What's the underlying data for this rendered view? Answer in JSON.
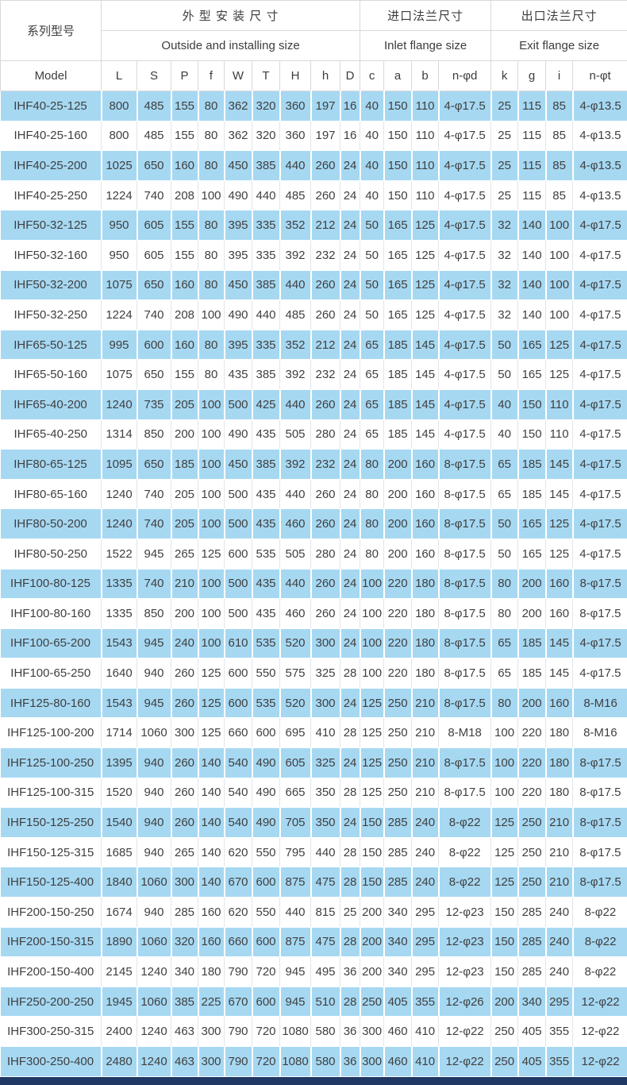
{
  "colors": {
    "row_blue": "#a6d8f2",
    "row_white": "#ffffff",
    "header_border": "#d9d9d9",
    "text": "#3f3f3f",
    "bottom_bar": "#1f3864"
  },
  "table": {
    "header": {
      "model_zh": "系列型号",
      "model_en": "Model",
      "groups": [
        {
          "zh": "外 型 安 装 尺 寸",
          "en": "Outside and installing size",
          "cols": [
            "L",
            "S",
            "P",
            "f",
            "W",
            "T",
            "H",
            "h",
            "D"
          ]
        },
        {
          "zh": "进口法兰尺寸",
          "en": "Inlet flange size",
          "cols": [
            "c",
            "a",
            "b",
            "n-φd"
          ]
        },
        {
          "zh": "出口法兰尺寸",
          "en": "Exit flange size",
          "cols": [
            "k",
            "g",
            "i",
            "n-φt"
          ]
        }
      ]
    },
    "rows": [
      {
        "model": "IHF40-25-125",
        "values": [
          "800",
          "485",
          "155",
          "80",
          "362",
          "320",
          "360",
          "197",
          "16",
          "40",
          "150",
          "110",
          "4-φ17.5",
          "25",
          "115",
          "85",
          "4-φ13.5"
        ]
      },
      {
        "model": "IHF40-25-160",
        "values": [
          "800",
          "485",
          "155",
          "80",
          "362",
          "320",
          "360",
          "197",
          "16",
          "40",
          "150",
          "110",
          "4-φ17.5",
          "25",
          "115",
          "85",
          "4-φ13.5"
        ]
      },
      {
        "model": "IHF40-25-200",
        "values": [
          "1025",
          "650",
          "160",
          "80",
          "450",
          "385",
          "440",
          "260",
          "24",
          "40",
          "150",
          "110",
          "4-φ17.5",
          "25",
          "115",
          "85",
          "4-φ13.5"
        ]
      },
      {
        "model": "IHF40-25-250",
        "values": [
          "1224",
          "740",
          "208",
          "100",
          "490",
          "440",
          "485",
          "260",
          "24",
          "40",
          "150",
          "110",
          "4-φ17.5",
          "25",
          "115",
          "85",
          "4-φ13.5"
        ]
      },
      {
        "model": "IHF50-32-125",
        "values": [
          "950",
          "605",
          "155",
          "80",
          "395",
          "335",
          "352",
          "212",
          "24",
          "50",
          "165",
          "125",
          "4-φ17.5",
          "32",
          "140",
          "100",
          "4-φ17.5"
        ]
      },
      {
        "model": "IHF50-32-160",
        "values": [
          "950",
          "605",
          "155",
          "80",
          "395",
          "335",
          "392",
          "232",
          "24",
          "50",
          "165",
          "125",
          "4-φ17.5",
          "32",
          "140",
          "100",
          "4-φ17.5"
        ]
      },
      {
        "model": "IHF50-32-200",
        "values": [
          "1075",
          "650",
          "160",
          "80",
          "450",
          "385",
          "440",
          "260",
          "24",
          "50",
          "165",
          "125",
          "4-φ17.5",
          "32",
          "140",
          "100",
          "4-φ17.5"
        ]
      },
      {
        "model": "IHF50-32-250",
        "values": [
          "1224",
          "740",
          "208",
          "100",
          "490",
          "440",
          "485",
          "260",
          "24",
          "50",
          "165",
          "125",
          "4-φ17.5",
          "32",
          "140",
          "100",
          "4-φ17.5"
        ]
      },
      {
        "model": "IHF65-50-125",
        "values": [
          "995",
          "600",
          "160",
          "80",
          "395",
          "335",
          "352",
          "212",
          "24",
          "65",
          "185",
          "145",
          "4-φ17.5",
          "50",
          "165",
          "125",
          "4-φ17.5"
        ]
      },
      {
        "model": "IHF65-50-160",
        "values": [
          "1075",
          "650",
          "155",
          "80",
          "435",
          "385",
          "392",
          "232",
          "24",
          "65",
          "185",
          "145",
          "4-φ17.5",
          "50",
          "165",
          "125",
          "4-φ17.5"
        ]
      },
      {
        "model": "IHF65-40-200",
        "values": [
          "1240",
          "735",
          "205",
          "100",
          "500",
          "425",
          "440",
          "260",
          "24",
          "65",
          "185",
          "145",
          "4-φ17.5",
          "40",
          "150",
          "110",
          "4-φ17.5"
        ]
      },
      {
        "model": "IHF65-40-250",
        "values": [
          "1314",
          "850",
          "200",
          "100",
          "490",
          "435",
          "505",
          "280",
          "24",
          "65",
          "185",
          "145",
          "4-φ17.5",
          "40",
          "150",
          "110",
          "4-φ17.5"
        ]
      },
      {
        "model": "IHF80-65-125",
        "values": [
          "1095",
          "650",
          "185",
          "100",
          "450",
          "385",
          "392",
          "232",
          "24",
          "80",
          "200",
          "160",
          "8-φ17.5",
          "65",
          "185",
          "145",
          "4-φ17.5"
        ]
      },
      {
        "model": "IHF80-65-160",
        "values": [
          "1240",
          "740",
          "205",
          "100",
          "500",
          "435",
          "440",
          "260",
          "24",
          "80",
          "200",
          "160",
          "8-φ17.5",
          "65",
          "185",
          "145",
          "4-φ17.5"
        ]
      },
      {
        "model": "IHF80-50-200",
        "values": [
          "1240",
          "740",
          "205",
          "100",
          "500",
          "435",
          "460",
          "260",
          "24",
          "80",
          "200",
          "160",
          "8-φ17.5",
          "50",
          "165",
          "125",
          "4-φ17.5"
        ]
      },
      {
        "model": "IHF80-50-250",
        "values": [
          "1522",
          "945",
          "265",
          "125",
          "600",
          "535",
          "505",
          "280",
          "24",
          "80",
          "200",
          "160",
          "8-φ17.5",
          "50",
          "165",
          "125",
          "4-φ17.5"
        ]
      },
      {
        "model": "IHF100-80-125",
        "values": [
          "1335",
          "740",
          "210",
          "100",
          "500",
          "435",
          "440",
          "260",
          "24",
          "100",
          "220",
          "180",
          "8-φ17.5",
          "80",
          "200",
          "160",
          "8-φ17.5"
        ]
      },
      {
        "model": "IHF100-80-160",
        "values": [
          "1335",
          "850",
          "200",
          "100",
          "500",
          "435",
          "460",
          "260",
          "24",
          "100",
          "220",
          "180",
          "8-φ17.5",
          "80",
          "200",
          "160",
          "8-φ17.5"
        ]
      },
      {
        "model": "IHF100-65-200",
        "values": [
          "1543",
          "945",
          "240",
          "100",
          "610",
          "535",
          "520",
          "300",
          "24",
          "100",
          "220",
          "180",
          "8-φ17.5",
          "65",
          "185",
          "145",
          "4-φ17.5"
        ]
      },
      {
        "model": "IHF100-65-250",
        "values": [
          "1640",
          "940",
          "260",
          "125",
          "600",
          "550",
          "575",
          "325",
          "28",
          "100",
          "220",
          "180",
          "8-φ17.5",
          "65",
          "185",
          "145",
          "4-φ17.5"
        ]
      },
      {
        "model": "IHF125-80-160",
        "values": [
          "1543",
          "945",
          "260",
          "125",
          "600",
          "535",
          "520",
          "300",
          "24",
          "125",
          "250",
          "210",
          "8-φ17.5",
          "80",
          "200",
          "160",
          "8-M16"
        ]
      },
      {
        "model": "IHF125-100-200",
        "values": [
          "1714",
          "1060",
          "300",
          "125",
          "660",
          "600",
          "695",
          "410",
          "28",
          "125",
          "250",
          "210",
          "8-M18",
          "100",
          "220",
          "180",
          "8-M16"
        ]
      },
      {
        "model": "IHF125-100-250",
        "values": [
          "1395",
          "940",
          "260",
          "140",
          "540",
          "490",
          "605",
          "325",
          "24",
          "125",
          "250",
          "210",
          "8-φ17.5",
          "100",
          "220",
          "180",
          "8-φ17.5"
        ]
      },
      {
        "model": "IHF125-100-315",
        "values": [
          "1520",
          "940",
          "260",
          "140",
          "540",
          "490",
          "665",
          "350",
          "28",
          "125",
          "250",
          "210",
          "8-φ17.5",
          "100",
          "220",
          "180",
          "8-φ17.5"
        ]
      },
      {
        "model": "IHF150-125-250",
        "values": [
          "1540",
          "940",
          "260",
          "140",
          "540",
          "490",
          "705",
          "350",
          "24",
          "150",
          "285",
          "240",
          "8-φ22",
          "125",
          "250",
          "210",
          "8-φ17.5"
        ]
      },
      {
        "model": "IHF150-125-315",
        "values": [
          "1685",
          "940",
          "265",
          "140",
          "620",
          "550",
          "795",
          "440",
          "28",
          "150",
          "285",
          "240",
          "8-φ22",
          "125",
          "250",
          "210",
          "8-φ17.5"
        ]
      },
      {
        "model": "IHF150-125-400",
        "values": [
          "1840",
          "1060",
          "300",
          "140",
          "670",
          "600",
          "875",
          "475",
          "28",
          "150",
          "285",
          "240",
          "8-φ22",
          "125",
          "250",
          "210",
          "8-φ17.5"
        ]
      },
      {
        "model": "IHF200-150-250",
        "values": [
          "1674",
          "940",
          "285",
          "160",
          "620",
          "550",
          "440",
          "815",
          "25",
          "200",
          "340",
          "295",
          "12-φ23",
          "150",
          "285",
          "240",
          "8-φ22"
        ]
      },
      {
        "model": "IHF200-150-315",
        "values": [
          "1890",
          "1060",
          "320",
          "160",
          "660",
          "600",
          "875",
          "475",
          "28",
          "200",
          "340",
          "295",
          "12-φ23",
          "150",
          "285",
          "240",
          "8-φ22"
        ]
      },
      {
        "model": "IHF200-150-400",
        "values": [
          "2145",
          "1240",
          "340",
          "180",
          "790",
          "720",
          "945",
          "495",
          "36",
          "200",
          "340",
          "295",
          "12-φ23",
          "150",
          "285",
          "240",
          "8-φ22"
        ]
      },
      {
        "model": "IHF250-200-250",
        "values": [
          "1945",
          "1060",
          "385",
          "225",
          "670",
          "600",
          "945",
          "510",
          "28",
          "250",
          "405",
          "355",
          "12-φ26",
          "200",
          "340",
          "295",
          "12-φ22"
        ]
      },
      {
        "model": "IHF300-250-315",
        "values": [
          "2400",
          "1240",
          "463",
          "300",
          "790",
          "720",
          "1080",
          "580",
          "36",
          "300",
          "460",
          "410",
          "12-φ22",
          "250",
          "405",
          "355",
          "12-φ22"
        ]
      },
      {
        "model": "IHF300-250-400",
        "values": [
          "2480",
          "1240",
          "463",
          "300",
          "790",
          "720",
          "1080",
          "580",
          "36",
          "300",
          "460",
          "410",
          "12-φ22",
          "250",
          "405",
          "355",
          "12-φ22"
        ]
      }
    ]
  }
}
